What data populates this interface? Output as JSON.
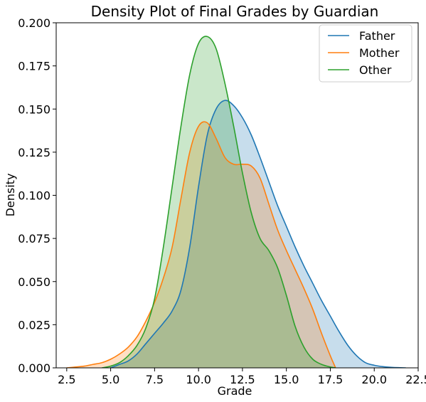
{
  "chart_data": {
    "type": "area",
    "title": "Density Plot of Final Grades by Guardian",
    "xlabel": "Grade",
    "ylabel": "Density",
    "xlim": [
      1.9,
      22.5
    ],
    "ylim": [
      0,
      0.2
    ],
    "xticks": [
      2.5,
      5.0,
      7.5,
      10.0,
      12.5,
      15.0,
      17.5,
      20.0,
      22.5
    ],
    "xtick_labels": [
      "2.5",
      "5.0",
      "7.5",
      "10.0",
      "12.5",
      "15.0",
      "17.5",
      "20.0",
      "22.5"
    ],
    "yticks": [
      0,
      0.025,
      0.05,
      0.075,
      0.1,
      0.125,
      0.15,
      0.175,
      0.2
    ],
    "ytick_labels": [
      "0.000",
      "0.025",
      "0.050",
      "0.075",
      "0.100",
      "0.125",
      "0.150",
      "0.175",
      "0.200"
    ],
    "grid": false,
    "legend_position": "top-right",
    "series": [
      {
        "name": "Father",
        "color": "#1f77b4",
        "x": [
          5.0,
          5.5,
          6.0,
          6.5,
          7.0,
          7.5,
          8.0,
          8.5,
          9.0,
          9.5,
          10.0,
          10.5,
          11.0,
          11.5,
          12.0,
          12.5,
          13.0,
          13.5,
          14.0,
          14.5,
          15.0,
          15.5,
          16.0,
          16.5,
          17.0,
          17.5,
          18.0,
          18.5,
          19.0,
          19.5,
          20.0,
          20.5,
          21.0,
          21.5,
          21.8
        ],
        "y": [
          0.0,
          0.002,
          0.004,
          0.008,
          0.014,
          0.02,
          0.026,
          0.033,
          0.045,
          0.07,
          0.105,
          0.135,
          0.15,
          0.155,
          0.152,
          0.145,
          0.135,
          0.122,
          0.108,
          0.094,
          0.082,
          0.07,
          0.059,
          0.049,
          0.039,
          0.03,
          0.021,
          0.013,
          0.007,
          0.003,
          0.0015,
          0.0007,
          0.0003,
          0.0001,
          0.0
        ]
      },
      {
        "name": "Mother",
        "color": "#ff7f0e",
        "x": [
          2.5,
          3.0,
          3.5,
          4.0,
          4.5,
          5.0,
          5.5,
          6.0,
          6.5,
          7.0,
          7.5,
          8.0,
          8.5,
          9.0,
          9.5,
          10.0,
          10.5,
          11.0,
          11.5,
          12.0,
          12.5,
          13.0,
          13.5,
          14.0,
          14.5,
          15.0,
          15.5,
          16.0,
          16.5,
          17.0,
          17.5,
          17.8
        ],
        "y": [
          0.0,
          0.0005,
          0.001,
          0.002,
          0.003,
          0.005,
          0.008,
          0.012,
          0.018,
          0.027,
          0.038,
          0.052,
          0.07,
          0.098,
          0.125,
          0.14,
          0.142,
          0.133,
          0.122,
          0.118,
          0.118,
          0.117,
          0.11,
          0.095,
          0.08,
          0.068,
          0.057,
          0.046,
          0.034,
          0.02,
          0.007,
          0.0
        ]
      },
      {
        "name": "Other",
        "color": "#2ca02c",
        "x": [
          4.5,
          5.0,
          5.5,
          6.0,
          6.5,
          7.0,
          7.5,
          8.0,
          8.5,
          9.0,
          9.5,
          10.0,
          10.5,
          11.0,
          11.5,
          12.0,
          12.5,
          13.0,
          13.5,
          14.0,
          14.5,
          15.0,
          15.5,
          16.0,
          16.5,
          17.0,
          17.5,
          17.8
        ],
        "y": [
          0.0,
          0.001,
          0.003,
          0.007,
          0.013,
          0.023,
          0.04,
          0.07,
          0.105,
          0.14,
          0.17,
          0.188,
          0.192,
          0.185,
          0.165,
          0.14,
          0.113,
          0.09,
          0.075,
          0.068,
          0.058,
          0.042,
          0.024,
          0.012,
          0.005,
          0.002,
          0.0005,
          0.0
        ]
      }
    ]
  }
}
